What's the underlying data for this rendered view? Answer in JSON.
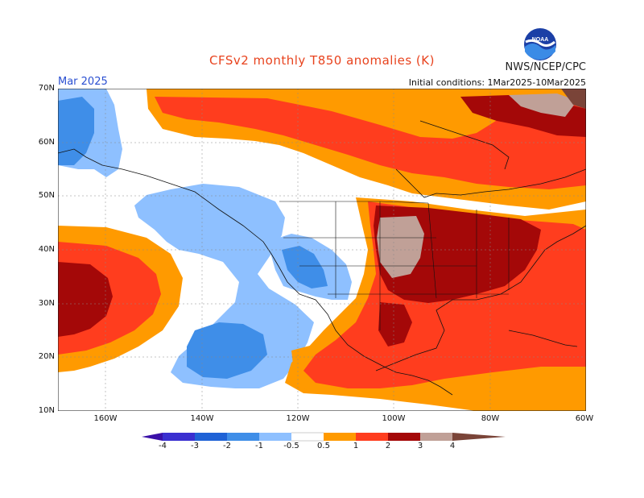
{
  "header": {
    "title": "CFSv2 monthly T850 anomalies (K)",
    "agency": "NWS/NCEP/CPC",
    "month": "Mar 2025",
    "initial_conditions": "Initial conditions: 1Mar2025-10Mar2025",
    "logo_text": "NOAA"
  },
  "axes": {
    "lat_labels": [
      "70N",
      "60N",
      "50N",
      "40N",
      "30N",
      "20N",
      "10N"
    ],
    "lon_labels": [
      "160W",
      "140W",
      "120W",
      "100W",
      "80W",
      "60W"
    ]
  },
  "legend": {
    "labels": [
      "-4",
      "-3",
      "-2",
      "-1",
      "-0.5",
      "0.5",
      "1",
      "2",
      "3",
      "4"
    ],
    "colors": {
      "lt_-4": "#3a10a8",
      "-4_-3": "#3a2fd0",
      "-3_-2": "#1f62d6",
      "-2_-1": "#3f8ee8",
      "-1_-0.5": "#8ec0ff",
      "-0.5_0.5": "#ffffff",
      "0.5_1": "#ff9a00",
      "1_2": "#ff3d1e",
      "2_3": "#a40808",
      "3_4": "#c0a097",
      "gt_4": "#7a4438"
    }
  }
}
